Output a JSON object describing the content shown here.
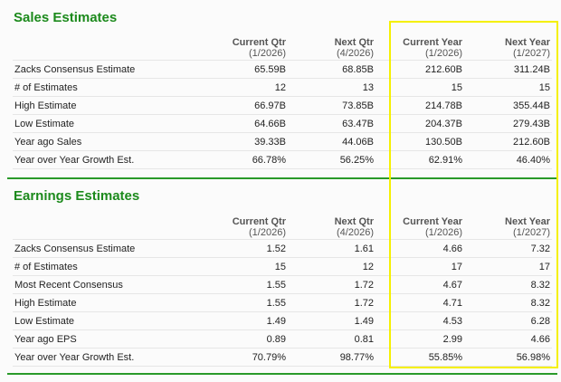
{
  "highlight_color": "#f5f000",
  "accent_color": "#1c8a1c",
  "sales": {
    "title": "Sales Estimates",
    "columns": [
      {
        "label": "Current Qtr",
        "period": "(1/2026)"
      },
      {
        "label": "Next Qtr",
        "period": "(4/2026)"
      },
      {
        "label": "Current Year",
        "period": "(1/2026)"
      },
      {
        "label": "Next Year",
        "period": "(1/2027)"
      }
    ],
    "rows": [
      {
        "label": "Zacks Consensus Estimate",
        "values": [
          "65.59B",
          "68.85B",
          "212.60B",
          "311.24B"
        ]
      },
      {
        "label": "# of Estimates",
        "values": [
          "12",
          "13",
          "15",
          "15"
        ]
      },
      {
        "label": "High Estimate",
        "values": [
          "66.97B",
          "73.85B",
          "214.78B",
          "355.44B"
        ]
      },
      {
        "label": "Low Estimate",
        "values": [
          "64.66B",
          "63.47B",
          "204.37B",
          "279.43B"
        ]
      },
      {
        "label": "Year ago Sales",
        "values": [
          "39.33B",
          "44.06B",
          "130.50B",
          "212.60B"
        ]
      },
      {
        "label": "Year over Year Growth Est.",
        "values": [
          "66.78%",
          "56.25%",
          "62.91%",
          "46.40%"
        ]
      }
    ]
  },
  "earnings": {
    "title": "Earnings Estimates",
    "columns": [
      {
        "label": "Current Qtr",
        "period": "(1/2026)"
      },
      {
        "label": "Next Qtr",
        "period": "(4/2026)"
      },
      {
        "label": "Current Year",
        "period": "(1/2026)"
      },
      {
        "label": "Next Year",
        "period": "(1/2027)"
      }
    ],
    "rows": [
      {
        "label": "Zacks Consensus Estimate",
        "values": [
          "1.52",
          "1.61",
          "4.66",
          "7.32"
        ]
      },
      {
        "label": "# of Estimates",
        "values": [
          "15",
          "12",
          "17",
          "17"
        ]
      },
      {
        "label": "Most Recent Consensus",
        "values": [
          "1.55",
          "1.72",
          "4.67",
          "8.32"
        ]
      },
      {
        "label": "High Estimate",
        "values": [
          "1.55",
          "1.72",
          "4.71",
          "8.32"
        ]
      },
      {
        "label": "Low Estimate",
        "values": [
          "1.49",
          "1.49",
          "4.53",
          "6.28"
        ]
      },
      {
        "label": "Year ago EPS",
        "values": [
          "0.89",
          "0.81",
          "2.99",
          "4.66"
        ]
      },
      {
        "label": "Year over Year Growth Est.",
        "values": [
          "70.79%",
          "98.77%",
          "55.85%",
          "56.98%"
        ]
      }
    ]
  }
}
